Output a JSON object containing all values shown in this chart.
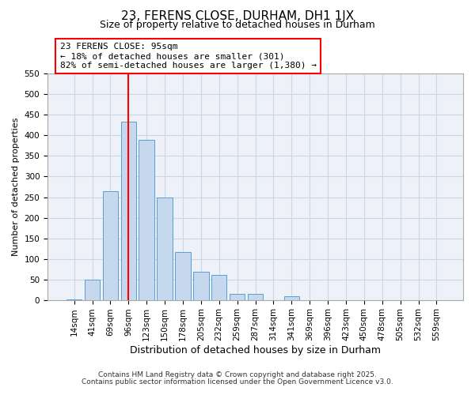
{
  "title": "23, FERENS CLOSE, DURHAM, DH1 1JX",
  "subtitle": "Size of property relative to detached houses in Durham",
  "xlabel": "Distribution of detached houses by size in Durham",
  "ylabel": "Number of detached properties",
  "footer_lines": [
    "Contains HM Land Registry data © Crown copyright and database right 2025.",
    "Contains public sector information licensed under the Open Government Licence v3.0."
  ],
  "bin_labels": [
    "14sqm",
    "41sqm",
    "69sqm",
    "96sqm",
    "123sqm",
    "150sqm",
    "178sqm",
    "205sqm",
    "232sqm",
    "259sqm",
    "287sqm",
    "314sqm",
    "341sqm",
    "369sqm",
    "396sqm",
    "423sqm",
    "450sqm",
    "478sqm",
    "505sqm",
    "532sqm",
    "559sqm"
  ],
  "bin_values": [
    2,
    50,
    265,
    433,
    390,
    250,
    117,
    68,
    60,
    14,
    15,
    0,
    8,
    0,
    0,
    0,
    0,
    0,
    0,
    0,
    0
  ],
  "bar_color": "#c5d8ed",
  "bar_edge_color": "#5a9fd4",
  "grid_color": "#c8d8e8",
  "background_color": "#eef2f8",
  "annotation_box_text": "23 FERENS CLOSE: 95sqm\n← 18% of detached houses are smaller (301)\n82% of semi-detached houses are larger (1,380) →",
  "vline_x_index": 3,
  "ylim": [
    0,
    550
  ],
  "yticks": [
    0,
    50,
    100,
    150,
    200,
    250,
    300,
    350,
    400,
    450,
    500,
    550
  ],
  "title_fontsize": 11,
  "subtitle_fontsize": 9,
  "ylabel_fontsize": 8,
  "xlabel_fontsize": 9,
  "tick_fontsize": 7.5,
  "footer_fontsize": 6.5,
  "ann_fontsize": 8
}
